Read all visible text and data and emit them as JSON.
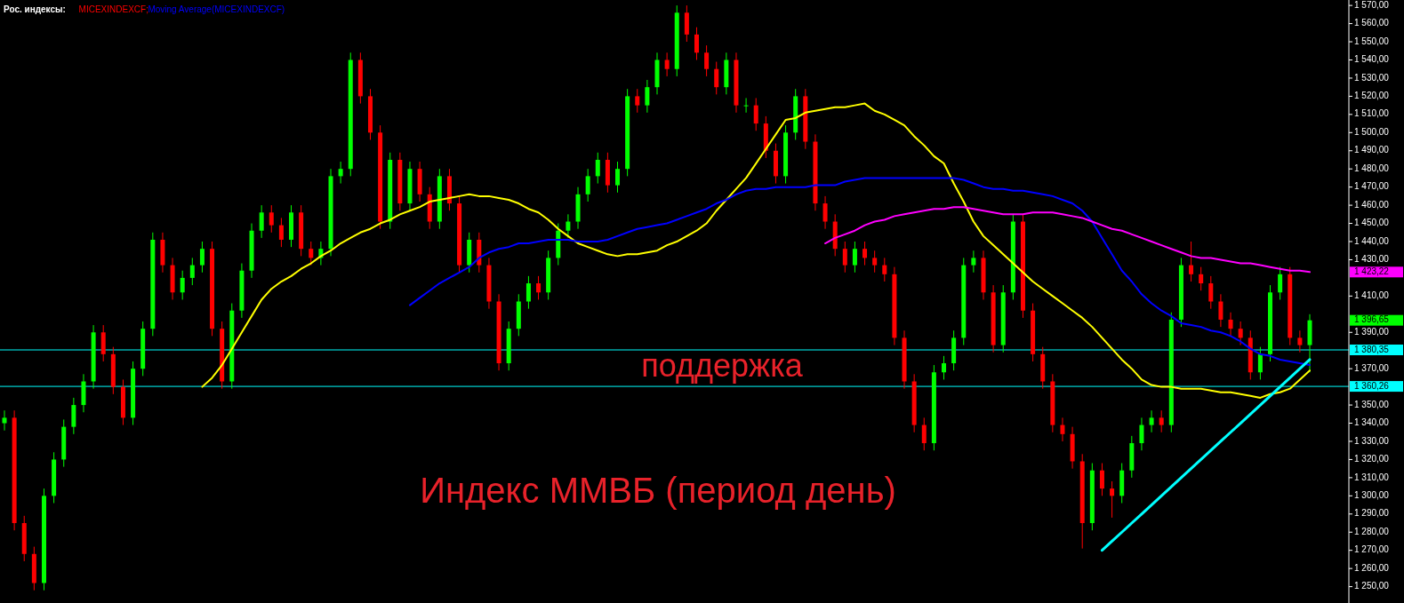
{
  "chart_data": {
    "type": "candlestick",
    "title": "Рос. индексы:",
    "grid": false,
    "tick_labels": "y",
    "categories": [
      null,
      null,
      null,
      null,
      null,
      null,
      null,
      null,
      null,
      null,
      null,
      null,
      null,
      null,
      null,
      null,
      null,
      null,
      null,
      null,
      null,
      null,
      null,
      null,
      null,
      null,
      null,
      null,
      null,
      null,
      null,
      null,
      null,
      null,
      null,
      null,
      null,
      null,
      null,
      null,
      null,
      null,
      null,
      null,
      null,
      null,
      null,
      null,
      null,
      null,
      null,
      null,
      null,
      null,
      null,
      null,
      null,
      null,
      null,
      null,
      null,
      null,
      null,
      null,
      null,
      null,
      null,
      null,
      null,
      null,
      null,
      null,
      null,
      null,
      null,
      null,
      null,
      null,
      null,
      null,
      null,
      null,
      null,
      null,
      null,
      null,
      null,
      null,
      null,
      null,
      null,
      null,
      null,
      null,
      null,
      null,
      null,
      null,
      null,
      null,
      null,
      null,
      null,
      null,
      null,
      null,
      null,
      null,
      null,
      null,
      null,
      null,
      null,
      null,
      null,
      null,
      null,
      null,
      null,
      null,
      null,
      null,
      null,
      null,
      null,
      null,
      null,
      null,
      null,
      null,
      null,
      null,
      null
    ],
    "ylim": [
      1241,
      1573
    ],
    "yticks": [
      {
        "value": 1250,
        "label": "1 250,00"
      },
      {
        "value": 1260,
        "label": "1 260,00"
      },
      {
        "value": 1270,
        "label": "1 270,00"
      },
      {
        "value": 1280,
        "label": "1 280,00"
      },
      {
        "value": 1290,
        "label": "1 290,00"
      },
      {
        "value": 1300,
        "label": "1 300,00"
      },
      {
        "value": 1310,
        "label": "1 310,00"
      },
      {
        "value": 1320,
        "label": "1 320,00"
      },
      {
        "value": 1330,
        "label": "1 330,00"
      },
      {
        "value": 1340,
        "label": "1 340,00"
      },
      {
        "value": 1350,
        "label": "1 350,00"
      },
      {
        "value": 1370,
        "label": "1 370,00"
      },
      {
        "value": 1390,
        "label": "1 390,00"
      },
      {
        "value": 1410,
        "label": "1 410,00"
      },
      {
        "value": 1430,
        "label": "1 430,00"
      },
      {
        "value": 1440,
        "label": "1 440,00"
      },
      {
        "value": 1450,
        "label": "1 450,00"
      },
      {
        "value": 1460,
        "label": "1 460,00"
      },
      {
        "value": 1470,
        "label": "1 470,00"
      },
      {
        "value": 1480,
        "label": "1 480,00"
      },
      {
        "value": 1490,
        "label": "1 490,00"
      },
      {
        "value": 1500,
        "label": "1 500,00"
      },
      {
        "value": 1510,
        "label": "1 510,00"
      },
      {
        "value": 1520,
        "label": "1 520,00"
      },
      {
        "value": 1530,
        "label": "1 530,00"
      },
      {
        "value": 1540,
        "label": "1 540,00"
      },
      {
        "value": 1550,
        "label": "1 550,00"
      },
      {
        "value": 1560,
        "label": "1 560,00"
      },
      {
        "value": 1570,
        "label": "1 570,00"
      }
    ],
    "series": [
      {
        "name": "MICEXINDEXCF;",
        "color": "#ff0000",
        "ohlc": [
          [
            1340,
            1347,
            1336,
            1343
          ],
          [
            1343,
            1347,
            1281,
            1285
          ],
          [
            1285,
            1289,
            1264,
            1268
          ],
          [
            1268,
            1272,
            1248,
            1252
          ],
          [
            1252,
            1304,
            1248,
            1300
          ],
          [
            1300,
            1324,
            1296,
            1320
          ],
          [
            1320,
            1342,
            1316,
            1338
          ],
          [
            1338,
            1354,
            1334,
            1350
          ],
          [
            1350,
            1367,
            1346,
            1363
          ],
          [
            1363,
            1394,
            1359,
            1390
          ],
          [
            1390,
            1394,
            1374,
            1378
          ],
          [
            1378,
            1382,
            1356,
            1360
          ],
          [
            1360,
            1364,
            1339,
            1343
          ],
          [
            1343,
            1374,
            1339,
            1370
          ],
          [
            1370,
            1396,
            1366,
            1392
          ],
          [
            1392,
            1445,
            1388,
            1441
          ],
          [
            1441,
            1445,
            1423,
            1427
          ],
          [
            1427,
            1431,
            1408,
            1412
          ],
          [
            1412,
            1424,
            1408,
            1420
          ],
          [
            1420,
            1431,
            1416,
            1427
          ],
          [
            1427,
            1440,
            1423,
            1436
          ],
          [
            1436,
            1440,
            1388,
            1392
          ],
          [
            1392,
            1396,
            1359,
            1363
          ],
          [
            1363,
            1406,
            1359,
            1402
          ],
          [
            1402,
            1428,
            1398,
            1424
          ],
          [
            1424,
            1450,
            1420,
            1446
          ],
          [
            1446,
            1460,
            1442,
            1456
          ],
          [
            1456,
            1460,
            1445,
            1449
          ],
          [
            1449,
            1453,
            1437,
            1441
          ],
          [
            1441,
            1460,
            1437,
            1456
          ],
          [
            1456,
            1460,
            1432,
            1436
          ],
          [
            1436,
            1440,
            1427,
            1431
          ],
          [
            1431,
            1440,
            1427,
            1436
          ],
          [
            1436,
            1480,
            1432,
            1476
          ],
          [
            1476,
            1484,
            1472,
            1480
          ],
          [
            1480,
            1544,
            1476,
            1540
          ],
          [
            1540,
            1544,
            1516,
            1520
          ],
          [
            1520,
            1524,
            1496,
            1500
          ],
          [
            1500,
            1504,
            1447,
            1451
          ],
          [
            1451,
            1489,
            1447,
            1485
          ],
          [
            1485,
            1489,
            1457,
            1461
          ],
          [
            1461,
            1484,
            1457,
            1480
          ],
          [
            1480,
            1484,
            1462,
            1466
          ],
          [
            1466,
            1470,
            1447,
            1451
          ],
          [
            1451,
            1480,
            1447,
            1476
          ],
          [
            1476,
            1480,
            1457,
            1461
          ],
          [
            1461,
            1465,
            1423,
            1427
          ],
          [
            1427,
            1445,
            1423,
            1441
          ],
          [
            1441,
            1445,
            1423,
            1427
          ],
          [
            1427,
            1431,
            1403,
            1407
          ],
          [
            1407,
            1411,
            1369,
            1373
          ],
          [
            1373,
            1396,
            1369,
            1392
          ],
          [
            1392,
            1411,
            1388,
            1407
          ],
          [
            1407,
            1421,
            1403,
            1417
          ],
          [
            1417,
            1421,
            1408,
            1412
          ],
          [
            1412,
            1435,
            1408,
            1431
          ],
          [
            1431,
            1450,
            1427,
            1446
          ],
          [
            1446,
            1455,
            1442,
            1451
          ],
          [
            1451,
            1470,
            1447,
            1466
          ],
          [
            1466,
            1480,
            1462,
            1476
          ],
          [
            1476,
            1489,
            1472,
            1485
          ],
          [
            1485,
            1489,
            1467,
            1471
          ],
          [
            1471,
            1484,
            1467,
            1480
          ],
          [
            1480,
            1524,
            1476,
            1520
          ],
          [
            1520,
            1524,
            1511,
            1515
          ],
          [
            1515,
            1529,
            1511,
            1525
          ],
          [
            1525,
            1544,
            1521,
            1540
          ],
          [
            1540,
            1544,
            1531,
            1535
          ],
          [
            1535,
            1570,
            1531,
            1566
          ],
          [
            1566,
            1570,
            1550,
            1554
          ],
          [
            1554,
            1558,
            1540,
            1544
          ],
          [
            1544,
            1548,
            1531,
            1535
          ],
          [
            1535,
            1539,
            1521,
            1525
          ],
          [
            1525,
            1544,
            1521,
            1540
          ],
          [
            1540,
            1544,
            1511,
            1515
          ],
          [
            1515,
            1519,
            1511,
            1515
          ],
          [
            1515,
            1519,
            1501,
            1505
          ],
          [
            1505,
            1509,
            1486,
            1490
          ],
          [
            1490,
            1494,
            1472,
            1476
          ],
          [
            1476,
            1504,
            1472,
            1500
          ],
          [
            1500,
            1524,
            1496,
            1520
          ],
          [
            1520,
            1524,
            1491,
            1495
          ],
          [
            1495,
            1499,
            1457,
            1461
          ],
          [
            1461,
            1465,
            1447,
            1451
          ],
          [
            1451,
            1455,
            1432,
            1436
          ],
          [
            1436,
            1440,
            1423,
            1427
          ],
          [
            1427,
            1440,
            1423,
            1436
          ],
          [
            1436,
            1440,
            1427,
            1431
          ],
          [
            1431,
            1435,
            1423,
            1427
          ],
          [
            1427,
            1431,
            1418,
            1422
          ],
          [
            1422,
            1426,
            1383,
            1387
          ],
          [
            1387,
            1391,
            1359,
            1363
          ],
          [
            1363,
            1367,
            1335,
            1339
          ],
          [
            1339,
            1343,
            1325,
            1329
          ],
          [
            1329,
            1372,
            1325,
            1368
          ],
          [
            1368,
            1377,
            1364,
            1373
          ],
          [
            1373,
            1391,
            1369,
            1387
          ],
          [
            1387,
            1431,
            1383,
            1427
          ],
          [
            1427,
            1435,
            1423,
            1431
          ],
          [
            1431,
            1435,
            1408,
            1412
          ],
          [
            1412,
            1416,
            1379,
            1383
          ],
          [
            1383,
            1416,
            1379,
            1412
          ],
          [
            1412,
            1455,
            1408,
            1451
          ],
          [
            1451,
            1455,
            1398,
            1402
          ],
          [
            1402,
            1406,
            1374,
            1378
          ],
          [
            1378,
            1382,
            1359,
            1363
          ],
          [
            1363,
            1367,
            1335,
            1339
          ],
          [
            1339,
            1343,
            1330,
            1334
          ],
          [
            1334,
            1338,
            1315,
            1319
          ],
          [
            1319,
            1323,
            1271,
            1285
          ],
          [
            1285,
            1318,
            1281,
            1314
          ],
          [
            1314,
            1318,
            1300,
            1304
          ],
          [
            1304,
            1308,
            1288,
            1300
          ],
          [
            1300,
            1318,
            1296,
            1314
          ],
          [
            1314,
            1333,
            1310,
            1329
          ],
          [
            1329,
            1343,
            1325,
            1339
          ],
          [
            1339,
            1347,
            1335,
            1343
          ],
          [
            1343,
            1347,
            1335,
            1339
          ],
          [
            1339,
            1401,
            1335,
            1397
          ],
          [
            1397,
            1431,
            1393,
            1427
          ],
          [
            1427,
            1440,
            1418,
            1422
          ],
          [
            1422,
            1426,
            1413,
            1417
          ],
          [
            1417,
            1421,
            1403,
            1407
          ],
          [
            1407,
            1411,
            1393,
            1397
          ],
          [
            1397,
            1401,
            1388,
            1392
          ],
          [
            1392,
            1396,
            1383,
            1387
          ],
          [
            1387,
            1391,
            1364,
            1368
          ],
          [
            1368,
            1382,
            1364,
            1378
          ],
          [
            1378,
            1416,
            1374,
            1412
          ],
          [
            1412,
            1426,
            1408,
            1422
          ],
          [
            1422,
            1426,
            1383,
            1387
          ],
          [
            1387,
            1391,
            1379,
            1383
          ],
          [
            1383,
            1400,
            1368,
            1396.65
          ]
        ],
        "colors": [
          "#00ff00",
          "#ff0000",
          "#ff0000",
          "#ff0000",
          "#00ff00",
          "#00ff00",
          "#00ff00",
          "#00ff00",
          "#00ff00",
          "#00ff00",
          "#ff0000",
          "#ff0000",
          "#ff0000",
          "#00ff00",
          "#00ff00",
          "#00ff00",
          "#ff0000",
          "#ff0000",
          "#00ff00",
          "#00ff00",
          "#00ff00",
          "#ff0000",
          "#ff0000",
          "#00ff00",
          "#00ff00",
          "#00ff00",
          "#00ff00",
          "#ff0000",
          "#ff0000",
          "#00ff00",
          "#ff0000",
          "#ff0000",
          "#00ff00",
          "#00ff00",
          "#00ff00",
          "#00ff00",
          "#ff0000",
          "#ff0000",
          "#ff0000",
          "#00ff00",
          "#ff0000",
          "#00ff00",
          "#ff0000",
          "#ff0000",
          "#00ff00",
          "#ff0000",
          "#ff0000",
          "#00ff00",
          "#ff0000",
          "#ff0000",
          "#ff0000",
          "#00ff00",
          "#00ff00",
          "#00ff00",
          "#ff0000",
          "#00ff00",
          "#00ff00",
          "#00ff00",
          "#00ff00",
          "#00ff00",
          "#00ff00",
          "#ff0000",
          "#00ff00",
          "#00ff00",
          "#ff0000",
          "#00ff00",
          "#00ff00",
          "#ff0000",
          "#00ff00",
          "#ff0000",
          "#ff0000",
          "#ff0000",
          "#ff0000",
          "#00ff00",
          "#ff0000",
          "#00ff00",
          "#ff0000",
          "#ff0000",
          "#ff0000",
          "#00ff00",
          "#00ff00",
          "#ff0000",
          "#ff0000",
          "#ff0000",
          "#ff0000",
          "#ff0000",
          "#00ff00",
          "#ff0000",
          "#ff0000",
          "#ff0000",
          "#ff0000",
          "#ff0000",
          "#ff0000",
          "#ff0000",
          "#00ff00",
          "#00ff00",
          "#00ff00",
          "#00ff00",
          "#00ff00",
          "#ff0000",
          "#ff0000",
          "#00ff00",
          "#00ff00",
          "#ff0000",
          "#ff0000",
          "#ff0000",
          "#ff0000",
          "#ff0000",
          "#ff0000",
          "#ff0000",
          "#00ff00",
          "#ff0000",
          "#ff0000",
          "#00ff00",
          "#00ff00",
          "#00ff00",
          "#00ff00",
          "#ff0000",
          "#00ff00",
          "#00ff00",
          "#ff0000",
          "#ff0000",
          "#ff0000",
          "#ff0000",
          "#ff0000",
          "#ff0000",
          "#ff0000",
          "#00ff00",
          "#00ff00",
          "#00ff00",
          "#ff0000",
          "#ff0000",
          "#00ff00"
        ]
      },
      {
        "type": "line",
        "color": "#ffff00",
        "values": [
          null,
          null,
          null,
          null,
          null,
          null,
          null,
          null,
          null,
          null,
          null,
          null,
          null,
          null,
          null,
          null,
          null,
          null,
          null,
          null,
          1360,
          1365,
          1372,
          1381,
          1390,
          1399,
          1408,
          1414,
          1418,
          1421,
          1425,
          1428,
          1432,
          1435,
          1439,
          1442,
          1445,
          1447,
          1450,
          1452,
          1455,
          1457,
          1459,
          1462,
          1463,
          1464,
          1465,
          1466,
          1465,
          1465,
          1464,
          1463,
          1461,
          1458,
          1456,
          1452,
          1447,
          1443,
          1439,
          1437,
          1435,
          1433,
          1432,
          1433,
          1433,
          1434,
          1435,
          1438,
          1440,
          1443,
          1446,
          1450,
          1457,
          1463,
          1469,
          1475,
          1483,
          1491,
          1499,
          1507,
          1508,
          1511,
          1512,
          1513,
          1514,
          1514,
          1515,
          1516,
          1512,
          1510,
          1507,
          1504,
          1498,
          1493,
          1487,
          1483,
          1472,
          1462,
          1451,
          1443,
          1438,
          1433,
          1428,
          1423,
          1418,
          1414,
          1410,
          1406,
          1402,
          1398,
          1393,
          1387,
          1381,
          1375,
          1370,
          1364,
          1361,
          1360,
          1360,
          1359,
          1359,
          1359,
          1358,
          1357,
          1357,
          1356,
          1355,
          1354,
          1356,
          1357,
          1359,
          1364,
          1369
        ]
      },
      {
        "name": "Moving Average(MICEXINDEXCF)",
        "type": "line",
        "color": "#0000ff",
        "values": [
          null,
          null,
          null,
          null,
          null,
          null,
          null,
          null,
          null,
          null,
          null,
          null,
          null,
          null,
          null,
          null,
          null,
          null,
          null,
          null,
          null,
          null,
          null,
          null,
          null,
          null,
          null,
          null,
          null,
          null,
          null,
          null,
          null,
          null,
          null,
          null,
          null,
          null,
          null,
          null,
          null,
          1405,
          1409,
          1413,
          1417,
          1420,
          1423,
          1426,
          1431,
          1434,
          1436,
          1437,
          1439,
          1439,
          1440,
          1441,
          1441,
          1441,
          1440,
          1440,
          1440,
          1441,
          1443,
          1445,
          1447,
          1448,
          1449,
          1450,
          1452,
          1454,
          1456,
          1458,
          1461,
          1463,
          1466,
          1468,
          1469,
          1469,
          1470,
          1470,
          1470,
          1470,
          1471,
          1471,
          1471,
          1473,
          1474,
          1475,
          1475,
          1475,
          1475,
          1475,
          1475,
          1475,
          1475,
          1475,
          1475,
          1474,
          1472,
          1470,
          1469,
          1469,
          1468,
          1468,
          1467,
          1466,
          1465,
          1463,
          1461,
          1457,
          1451,
          1442,
          1433,
          1424,
          1418,
          1411,
          1406,
          1402,
          1399,
          1395,
          1394,
          1393,
          1391,
          1390,
          1388,
          1385,
          1381,
          1378,
          1377,
          1375,
          1374,
          1373,
          1372
        ]
      },
      {
        "type": "line",
        "color": "#ff00ff",
        "values": [
          null,
          null,
          null,
          null,
          null,
          null,
          null,
          null,
          null,
          null,
          null,
          null,
          null,
          null,
          null,
          null,
          null,
          null,
          null,
          null,
          null,
          null,
          null,
          null,
          null,
          null,
          null,
          null,
          null,
          null,
          null,
          null,
          null,
          null,
          null,
          null,
          null,
          null,
          null,
          null,
          null,
          null,
          null,
          null,
          null,
          null,
          null,
          null,
          null,
          null,
          null,
          null,
          null,
          null,
          null,
          null,
          null,
          null,
          null,
          null,
          null,
          null,
          null,
          null,
          null,
          null,
          null,
          null,
          null,
          null,
          null,
          null,
          null,
          null,
          null,
          null,
          null,
          null,
          null,
          null,
          null,
          null,
          null,
          1439,
          1442,
          1444,
          1446,
          1449,
          1451,
          1452,
          1454,
          1455,
          1456,
          1457,
          1458,
          1458,
          1459,
          1459,
          1458,
          1457,
          1456,
          1455,
          1455,
          1455,
          1456,
          1456,
          1456,
          1455,
          1454,
          1453,
          1451,
          1449,
          1447,
          1446,
          1444,
          1442,
          1440,
          1438,
          1436,
          1434,
          1432,
          1431,
          1431,
          1430,
          1429,
          1428,
          1428,
          1427,
          1426,
          1425,
          1424,
          1424,
          1423.22
        ]
      },
      {
        "type": "line",
        "color": "#00ffff",
        "values": [
          null,
          null,
          null,
          null,
          null,
          null,
          null,
          null,
          null,
          null,
          null,
          null,
          null,
          null,
          null,
          null,
          null,
          null,
          null,
          null,
          null,
          null,
          null,
          null,
          null,
          null,
          null,
          null,
          null,
          null,
          null,
          null,
          null,
          null,
          null,
          null,
          null,
          null,
          null,
          null,
          null,
          null,
          null,
          null,
          null,
          null,
          null,
          null,
          null,
          null,
          null,
          null,
          null,
          null,
          null,
          null,
          null,
          null,
          null,
          null,
          null,
          null,
          null,
          null,
          null,
          null,
          null,
          null,
          null,
          null,
          null,
          null,
          null,
          null,
          null,
          null,
          null,
          null,
          null,
          null,
          null,
          null,
          null,
          null,
          null,
          null,
          null,
          null,
          null,
          null,
          null,
          null,
          null,
          null,
          null,
          null,
          null,
          null,
          null,
          null,
          null,
          null,
          null,
          null,
          null,
          null,
          null,
          null,
          null,
          null,
          null,
          1270,
          1275,
          1280,
          1285,
          1290,
          1295,
          1300,
          1305,
          1310,
          1315,
          1320,
          1325,
          1330,
          1335,
          1340,
          1345,
          1350,
          1355,
          1360,
          1365,
          1370,
          1375
        ]
      }
    ],
    "ref_lines": [
      {
        "axis": "y",
        "value": 1380.35,
        "label": "1 380,35",
        "color": "#00ffff"
      },
      {
        "axis": "y",
        "value": 1360.26,
        "label": "1 360,26",
        "color": "#00ffff"
      }
    ],
    "annotations": [
      "поддержка",
      "Индекс ММВБ (период день)",
      "1 423,22",
      "1 396,65"
    ]
  }
}
